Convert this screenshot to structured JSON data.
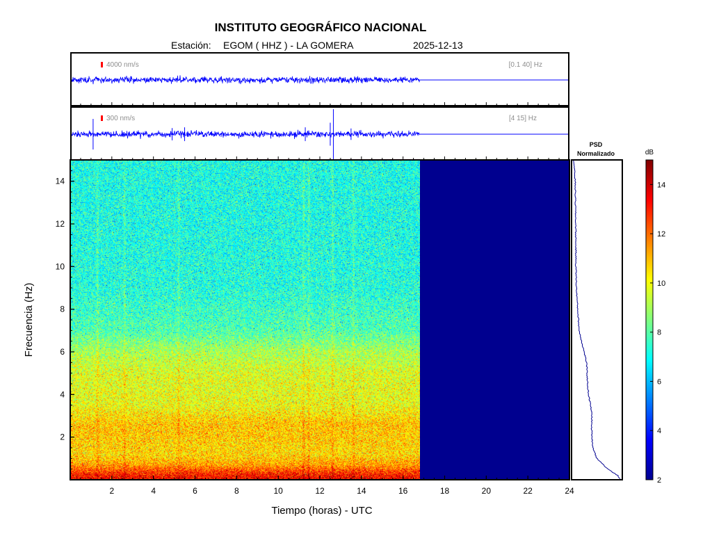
{
  "header": {
    "title": "INSTITUTO GEOGRÁFICO NACIONAL",
    "station_prefix": "Estación:",
    "station": "EGOM ( HHZ ) - LA GOMERA",
    "date": "2025-12-13"
  },
  "colors": {
    "trace": "#0000ff",
    "scale_bar": "#ff0000",
    "no_data": "#00008f",
    "psd_line": "#00008f",
    "annotation_gray": "#8c8c8c"
  },
  "chart_data": [
    {
      "type": "line",
      "name": "waveform-broadband",
      "amplitude_scale": "4000 nm/s",
      "filter_band": "[0.1 40] Hz",
      "x_range_hours": [
        0,
        24
      ],
      "data_end_hours": 16.8,
      "relative_noise_level": 1.0,
      "spikes": []
    },
    {
      "type": "line",
      "name": "waveform-filtered",
      "amplitude_scale": "300 nm/s",
      "filter_band": "[4 15] Hz",
      "x_range_hours": [
        0,
        24
      ],
      "data_end_hours": 16.8,
      "relative_noise_level": 1.0,
      "spikes": [
        {
          "t": 1.1,
          "amp": 4.0
        },
        {
          "t": 4.9,
          "amp": 1.6
        },
        {
          "t": 5.5,
          "amp": 1.8
        },
        {
          "t": 11.3,
          "amp": 1.8
        },
        {
          "t": 12.5,
          "amp": 3.0
        },
        {
          "t": 12.65,
          "amp": 10.0
        },
        {
          "t": 13.5,
          "amp": 1.5
        }
      ]
    },
    {
      "type": "heatmap",
      "name": "spectrogram",
      "xlabel": "Tiempo (horas) - UTC",
      "ylabel": "Frecuencia  (Hz)",
      "xlim": [
        0,
        24
      ],
      "ylim": [
        0,
        15
      ],
      "xticks": [
        2,
        4,
        6,
        8,
        10,
        12,
        14,
        16,
        18,
        20,
        22,
        24
      ],
      "yticks": [
        2,
        4,
        6,
        8,
        10,
        12,
        14
      ],
      "data_end_hours": 16.8,
      "no_data_db": 2,
      "level_profile_db": [
        {
          "f": 0.0,
          "db": 13.6
        },
        {
          "f": 0.3,
          "db": 13.0
        },
        {
          "f": 0.7,
          "db": 11.4
        },
        {
          "f": 1.2,
          "db": 10.6
        },
        {
          "f": 2.0,
          "db": 10.8
        },
        {
          "f": 2.6,
          "db": 10.9
        },
        {
          "f": 3.5,
          "db": 10.0
        },
        {
          "f": 5.0,
          "db": 9.8
        },
        {
          "f": 6.0,
          "db": 9.1
        },
        {
          "f": 7.0,
          "db": 7.9
        },
        {
          "f": 9.0,
          "db": 7.3
        },
        {
          "f": 12.0,
          "db": 7.2
        },
        {
          "f": 15.0,
          "db": 7.2
        }
      ],
      "bright_streaks_hours": [
        1.3,
        2.6,
        5.2,
        11.2,
        11.45,
        12.6,
        13.6
      ]
    },
    {
      "type": "line",
      "name": "psd-normalizado",
      "title": "PSD\nNormalizado",
      "x_range": [
        0,
        1
      ],
      "points": [
        {
          "f": 0.05,
          "v": 0.97
        },
        {
          "f": 0.2,
          "v": 0.92
        },
        {
          "f": 0.5,
          "v": 0.72
        },
        {
          "f": 1.0,
          "v": 0.5
        },
        {
          "f": 1.5,
          "v": 0.42
        },
        {
          "f": 2.0,
          "v": 0.4
        },
        {
          "f": 2.5,
          "v": 0.39
        },
        {
          "f": 3.0,
          "v": 0.4
        },
        {
          "f": 3.5,
          "v": 0.37
        },
        {
          "f": 4.0,
          "v": 0.33
        },
        {
          "f": 4.5,
          "v": 0.31
        },
        {
          "f": 5.0,
          "v": 0.3
        },
        {
          "f": 5.5,
          "v": 0.29
        },
        {
          "f": 6.0,
          "v": 0.24
        },
        {
          "f": 6.5,
          "v": 0.19
        },
        {
          "f": 7.0,
          "v": 0.14
        },
        {
          "f": 8.0,
          "v": 0.11
        },
        {
          "f": 9.0,
          "v": 0.085
        },
        {
          "f": 10.0,
          "v": 0.075
        },
        {
          "f": 12.0,
          "v": 0.07
        },
        {
          "f": 14.0,
          "v": 0.06
        },
        {
          "f": 15.0,
          "v": 0.03
        }
      ]
    },
    {
      "type": "colorbar",
      "name": "colorbar-db",
      "label": "dB",
      "range": [
        2,
        15
      ],
      "ticks": [
        2,
        4,
        6,
        8,
        10,
        12,
        14
      ],
      "colormap": "jet"
    }
  ]
}
